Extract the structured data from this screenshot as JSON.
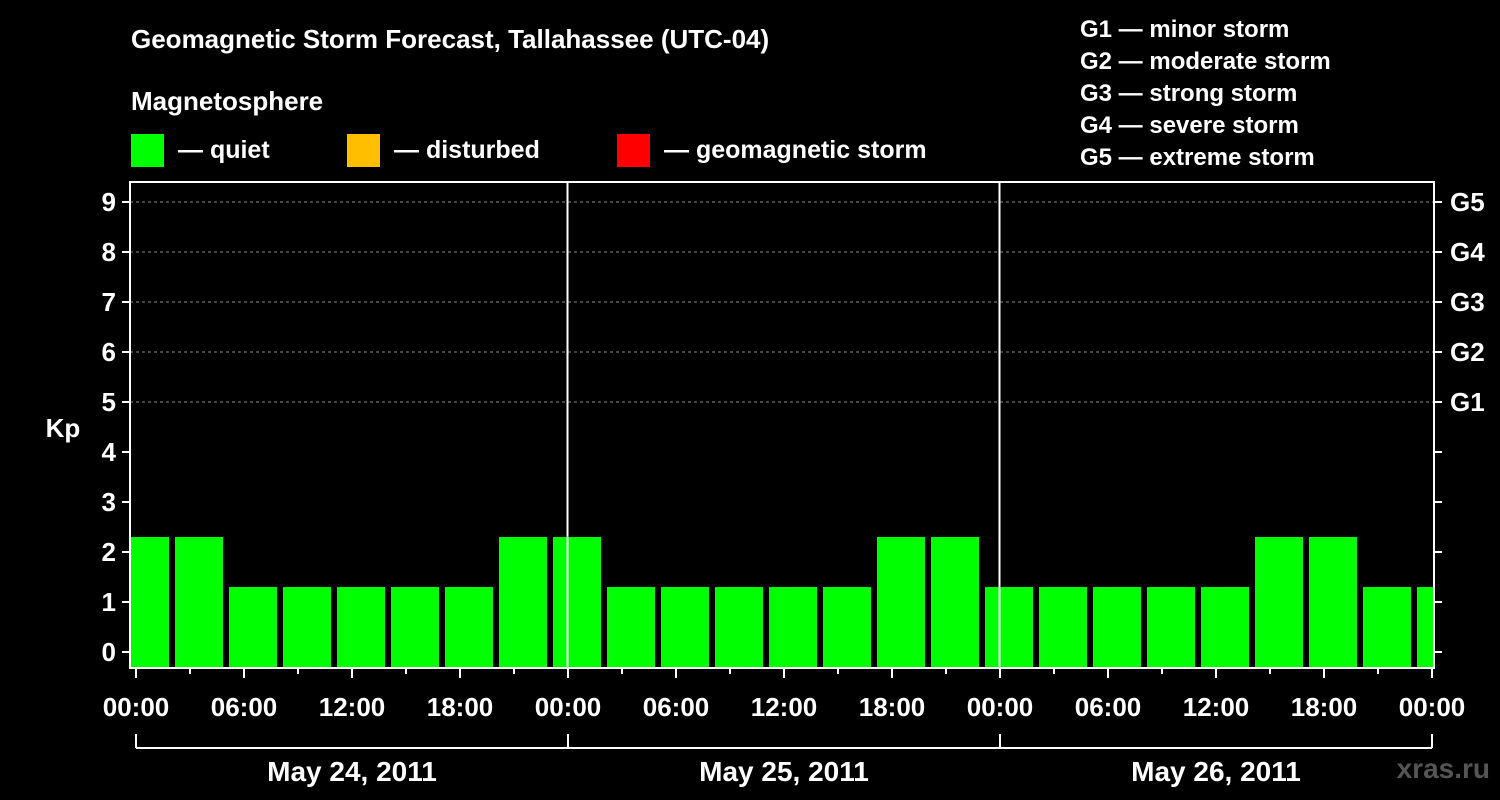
{
  "chart_data": {
    "type": "bar",
    "title": "Geomagnetic Storm Forecast, Tallahassee (UTC-04)",
    "subtitle": "Magnetosphere",
    "ylabel": "Kp",
    "ylim": [
      0,
      9
    ],
    "yticks": [
      "0",
      "1",
      "2",
      "3",
      "4",
      "5",
      "6",
      "7",
      "8",
      "9"
    ],
    "right_ticks": [
      {
        "kp": 5,
        "label": "G1"
      },
      {
        "kp": 6,
        "label": "G2"
      },
      {
        "kp": 7,
        "label": "G3"
      },
      {
        "kp": 8,
        "label": "G4"
      },
      {
        "kp": 9,
        "label": "G5"
      }
    ],
    "xticks": [
      "00:00",
      "06:00",
      "12:00",
      "18:00",
      "00:00",
      "06:00",
      "12:00",
      "18:00",
      "00:00",
      "06:00",
      "12:00",
      "18:00",
      "00:00"
    ],
    "xrange_hours": [
      0,
      72
    ],
    "days": [
      "May 24, 2011",
      "May 25, 2011",
      "May 26, 2011"
    ],
    "bar_interval_hours": 3,
    "first_bar_start_hour": -1,
    "values": [
      2,
      2,
      1,
      1,
      1,
      1,
      1,
      2,
      2,
      1,
      1,
      1,
      1,
      1,
      2,
      2,
      1,
      1,
      1,
      1,
      1,
      2,
      2,
      1,
      1
    ],
    "grid": "dashed horizontal at Kp 5–9",
    "colors": {
      "quiet": "#00ff00",
      "disturbed": "#ffbf00",
      "storm": "#ff0000"
    }
  },
  "legend": {
    "quiet": "— quiet",
    "disturbed": "— disturbed",
    "storm": "— geomagnetic storm"
  },
  "g_scale": [
    "G1 — minor storm",
    "G2 — moderate storm",
    "G3 — strong storm",
    "G4 — severe storm",
    "G5 — extreme storm"
  ],
  "watermark": "xras.ru"
}
